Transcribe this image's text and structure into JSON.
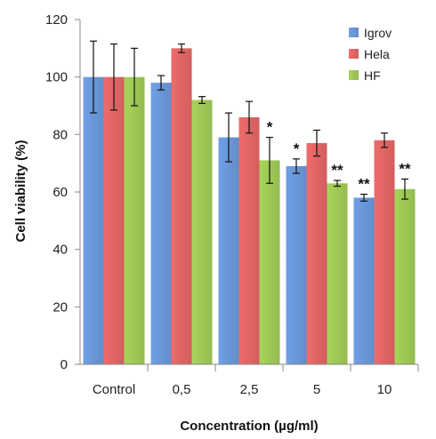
{
  "chart_data": {
    "type": "bar",
    "xlabel": "Concentration (µg/ml)",
    "ylabel": "Cell viability (%)",
    "ylim": [
      0,
      120
    ],
    "yticks": [
      0,
      20,
      40,
      60,
      80,
      100,
      120
    ],
    "grid": false,
    "legend_position": "top-right",
    "categories": [
      "Control",
      "0,5",
      "2,5",
      "5",
      "10"
    ],
    "series": [
      {
        "name": "Igrov",
        "color": "#6fa0e6",
        "values": [
          100,
          98,
          79,
          69,
          58
        ],
        "errors": [
          12.5,
          2.5,
          8.5,
          2.5,
          1.2
        ],
        "significance": [
          "",
          "",
          "",
          "*",
          "**"
        ]
      },
      {
        "name": "Hela",
        "color": "#ef6b6b",
        "values": [
          100,
          110,
          86,
          77,
          78
        ],
        "errors": [
          11.5,
          1.5,
          5.5,
          4.5,
          2.5
        ],
        "significance": [
          "",
          "",
          "",
          "",
          ""
        ]
      },
      {
        "name": "HF",
        "color": "#a8d45a",
        "values": [
          100,
          92,
          71,
          63,
          61
        ],
        "errors": [
          10,
          1.2,
          8,
          1,
          3.5
        ],
        "significance": [
          "",
          "",
          "*",
          "**",
          "**"
        ]
      }
    ]
  }
}
